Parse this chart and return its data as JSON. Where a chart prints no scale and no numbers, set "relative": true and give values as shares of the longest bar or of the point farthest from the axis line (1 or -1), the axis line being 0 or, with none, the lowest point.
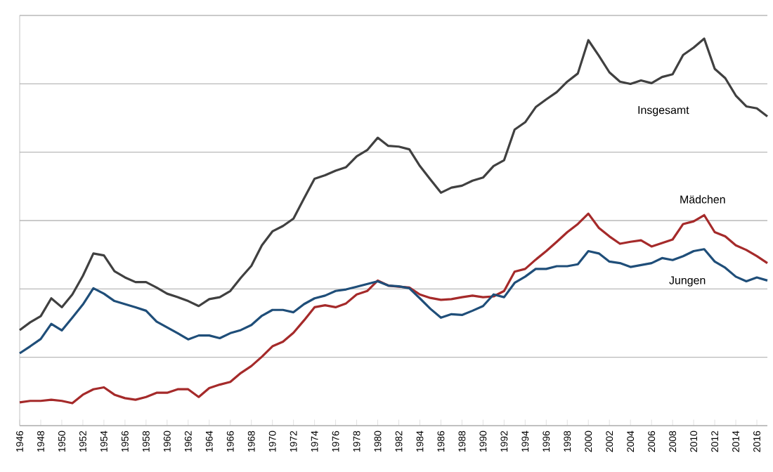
{
  "chart_data": {
    "type": "line",
    "relative": true,
    "grid": "y",
    "legend": false,
    "line_style": "solid",
    "marker": "none",
    "x": [
      1946,
      1947,
      1948,
      1949,
      1950,
      1951,
      1952,
      1953,
      1954,
      1955,
      1956,
      1957,
      1958,
      1959,
      1960,
      1961,
      1962,
      1963,
      1964,
      1965,
      1966,
      1967,
      1968,
      1969,
      1970,
      1971,
      1972,
      1973,
      1974,
      1975,
      1976,
      1977,
      1978,
      1979,
      1980,
      1981,
      1982,
      1983,
      1984,
      1985,
      1986,
      1987,
      1988,
      1989,
      1990,
      1991,
      1992,
      1993,
      1994,
      1995,
      1996,
      1997,
      1998,
      1999,
      2000,
      2001,
      2002,
      2003,
      2004,
      2005,
      2006,
      2007,
      2008,
      2009,
      2010,
      2011,
      2012,
      2013,
      2014,
      2015,
      2016,
      2017
    ],
    "xlim": [
      1946,
      2017
    ],
    "xticks": [
      1946,
      1948,
      1950,
      1952,
      1954,
      1956,
      1958,
      1960,
      1962,
      1964,
      1966,
      1968,
      1970,
      1972,
      1974,
      1976,
      1978,
      1980,
      1982,
      1984,
      1986,
      1988,
      1990,
      1992,
      1994,
      1996,
      1998,
      2000,
      2002,
      2004,
      2006,
      2008,
      2010,
      2012,
      2014,
      2016
    ],
    "series": [
      {
        "name": "Insgesamt",
        "color": "#404040",
        "values": [
          0.247,
          0.267,
          0.283,
          0.329,
          0.306,
          0.339,
          0.387,
          0.445,
          0.44,
          0.399,
          0.383,
          0.371,
          0.371,
          0.357,
          0.341,
          0.332,
          0.322,
          0.309,
          0.327,
          0.332,
          0.348,
          0.382,
          0.413,
          0.466,
          0.502,
          0.516,
          0.535,
          0.587,
          0.638,
          0.647,
          0.659,
          0.668,
          0.696,
          0.712,
          0.744,
          0.723,
          0.721,
          0.714,
          0.671,
          0.636,
          0.602,
          0.615,
          0.62,
          0.633,
          0.641,
          0.671,
          0.686,
          0.765,
          0.784,
          0.823,
          0.843,
          0.862,
          0.889,
          0.91,
          0.996,
          0.956,
          0.913,
          0.889,
          0.883,
          0.892,
          0.885,
          0.901,
          0.908,
          0.958,
          0.977,
          1,
          0.922,
          0.898,
          0.853,
          0.825,
          0.82,
          0.799
        ]
      },
      {
        "name": "Mädchen",
        "color": "#a52a2a",
        "values": [
          0.06,
          0.064,
          0.064,
          0.067,
          0.064,
          0.058,
          0.08,
          0.094,
          0.099,
          0.08,
          0.071,
          0.067,
          0.074,
          0.085,
          0.085,
          0.094,
          0.094,
          0.074,
          0.097,
          0.106,
          0.113,
          0.136,
          0.154,
          0.178,
          0.205,
          0.217,
          0.24,
          0.272,
          0.306,
          0.311,
          0.306,
          0.316,
          0.339,
          0.348,
          0.375,
          0.362,
          0.359,
          0.357,
          0.339,
          0.33,
          0.325,
          0.327,
          0.332,
          0.336,
          0.332,
          0.334,
          0.348,
          0.398,
          0.405,
          0.429,
          0.451,
          0.475,
          0.5,
          0.521,
          0.548,
          0.511,
          0.489,
          0.47,
          0.475,
          0.479,
          0.463,
          0.472,
          0.481,
          0.521,
          0.528,
          0.544,
          0.5,
          0.489,
          0.466,
          0.454,
          0.438,
          0.42
        ]
      },
      {
        "name": "Jungen",
        "color": "#1f4e79",
        "values": [
          0.187,
          0.205,
          0.224,
          0.263,
          0.246,
          0.279,
          0.313,
          0.355,
          0.341,
          0.322,
          0.314,
          0.306,
          0.297,
          0.269,
          0.254,
          0.239,
          0.223,
          0.233,
          0.233,
          0.226,
          0.239,
          0.247,
          0.26,
          0.284,
          0.299,
          0.299,
          0.293,
          0.314,
          0.329,
          0.336,
          0.348,
          0.352,
          0.359,
          0.366,
          0.373,
          0.362,
          0.36,
          0.355,
          0.329,
          0.302,
          0.279,
          0.288,
          0.286,
          0.297,
          0.309,
          0.339,
          0.332,
          0.369,
          0.385,
          0.405,
          0.405,
          0.412,
          0.412,
          0.417,
          0.451,
          0.445,
          0.424,
          0.42,
          0.41,
          0.415,
          0.42,
          0.433,
          0.428,
          0.438,
          0.451,
          0.456,
          0.424,
          0.408,
          0.385,
          0.373,
          0.383,
          0.375
        ]
      }
    ]
  }
}
